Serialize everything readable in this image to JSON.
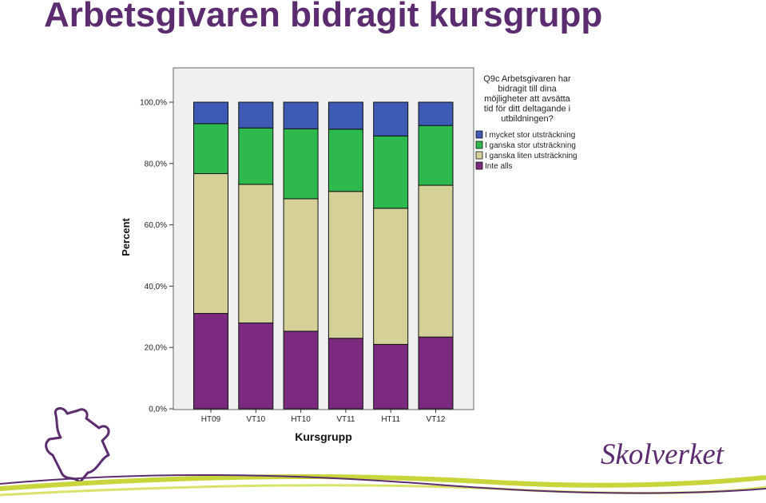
{
  "slide": {
    "title": "Arbetsgivaren bidragit kursgrupp"
  },
  "brand": {
    "name": "Skolverket"
  },
  "chart_data": {
    "type": "bar",
    "stacked": true,
    "categories": [
      "HT09",
      "VT10",
      "HT10",
      "VT11",
      "HT11",
      "VT12"
    ],
    "series": [
      {
        "name": "Inte alls",
        "color": "#7b2a7f",
        "values": [
          31.1,
          28.0,
          25.3,
          23.0,
          21.0,
          23.4
        ]
      },
      {
        "name": "I ganska liten utsträckning",
        "color": "#d4d098",
        "values": [
          45.6,
          45.2,
          43.2,
          47.9,
          44.4,
          49.5
        ]
      },
      {
        "name": "I ganska stor utsträckning",
        "color": "#2db94d",
        "values": [
          16.3,
          18.4,
          22.8,
          20.3,
          23.6,
          19.5
        ]
      },
      {
        "name": "I mycket stor utsträckning",
        "color": "#3d5ab5",
        "values": [
          7.0,
          8.4,
          8.7,
          8.8,
          11.0,
          7.6
        ]
      }
    ],
    "xlabel": "Kursgrupp",
    "ylabel": "Percent",
    "ylim": [
      0,
      100
    ],
    "yticks": [
      "0,0%",
      "20,0%",
      "40,0%",
      "60,0%",
      "80,0%",
      "100,0%"
    ],
    "legend_title_lines": [
      "Q9c Arbetsgivaren har",
      "bidragit till dina",
      "möjligheter att avsätta",
      "tid för ditt deltagande i",
      "utbildningen?"
    ],
    "legend_order": [
      3,
      2,
      1,
      0
    ],
    "legend_position": "right",
    "plot_background": "#f0f0f0",
    "grid": false
  }
}
